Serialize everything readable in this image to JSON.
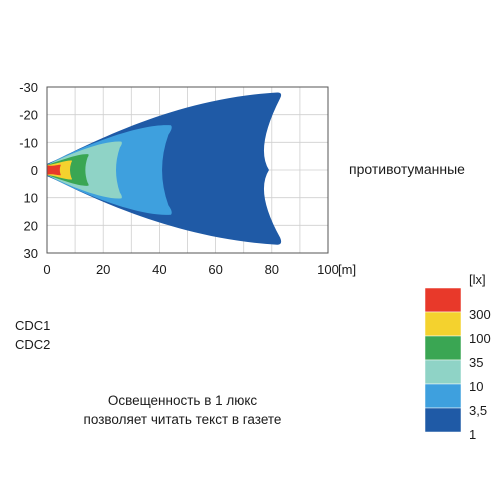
{
  "chart_data": {
    "type": "heatmap",
    "title": "противотуманные",
    "xlabel": "[m]",
    "x_ticks": [
      "0",
      "20",
      "40",
      "60",
      "80",
      "100"
    ],
    "y_ticks": [
      "-30",
      "-20",
      "-10",
      "0",
      "10",
      "20",
      "30"
    ],
    "xlim": [
      0,
      100
    ],
    "ylim": [
      -30,
      30
    ],
    "grid": true,
    "isolux_reach_m": [
      {
        "lux": "1",
        "reach": 83
      },
      {
        "lux": "3,5",
        "reach": 45
      },
      {
        "lux": "10",
        "reach": 27
      },
      {
        "lux": "35",
        "reach": 15
      },
      {
        "lux": "100",
        "reach": 9
      },
      {
        "lux": "300",
        "reach": 5
      }
    ],
    "legend": {
      "unit": "[lx]",
      "levels": [
        {
          "label": "300",
          "color": "#e8392a"
        },
        {
          "label": "100",
          "color": "#f4d22e"
        },
        {
          "label": "35",
          "color": "#3aa653"
        },
        {
          "label": "10",
          "color": "#8fd3c6"
        },
        {
          "label": "3,5",
          "color": "#3ea0de"
        },
        {
          "label": "1",
          "color": "#1f5aa6"
        }
      ]
    }
  },
  "models": [
    "CDC1",
    "CDC2"
  ],
  "note": [
    "Освещенность в 1 люкс",
    "позволяет читать текст в газете"
  ]
}
